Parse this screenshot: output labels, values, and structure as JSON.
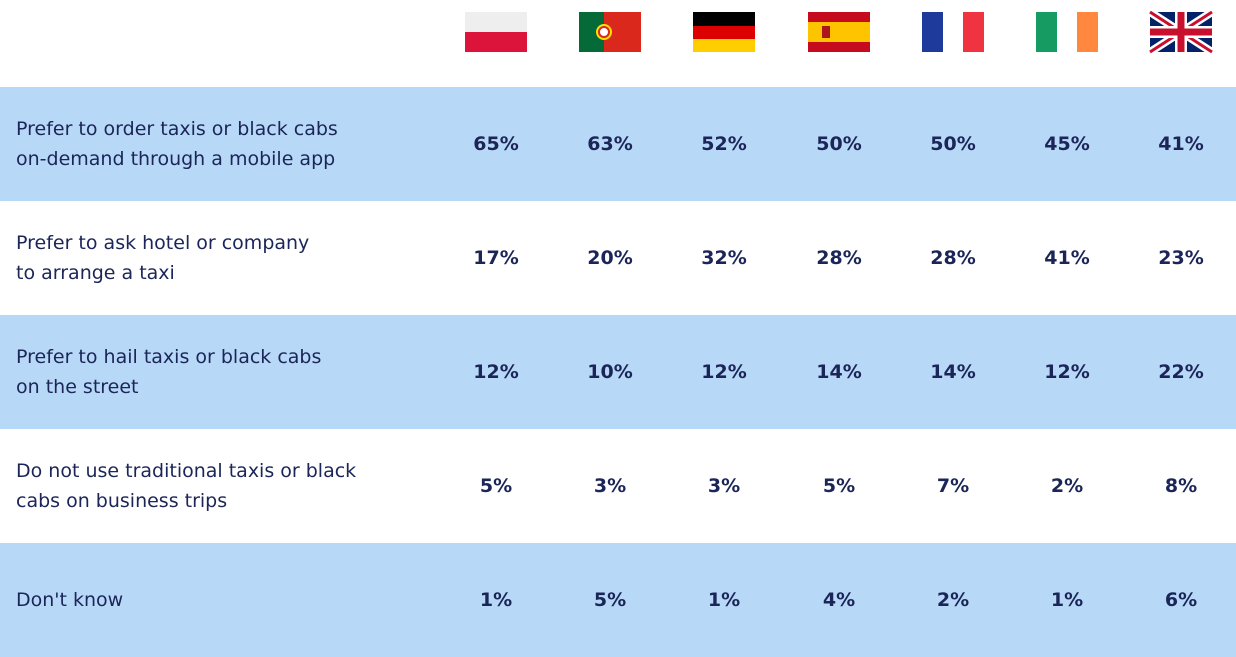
{
  "table": {
    "rows": [
      {
        "label": [
          "Prefer to order taxis or black cabs",
          "on-demand through a mobile app"
        ],
        "values": [
          "65%",
          "63%",
          "52%",
          "50%",
          "50%",
          "45%",
          "41%"
        ]
      },
      {
        "label": [
          "Prefer to ask hotel or company",
          "to arrange a taxi"
        ],
        "values": [
          "17%",
          "20%",
          "32%",
          "28%",
          "28%",
          "41%",
          "23%"
        ]
      },
      {
        "label": [
          "Prefer to hail taxis or black cabs",
          "on the street"
        ],
        "values": [
          "12%",
          "10%",
          "12%",
          "14%",
          "14%",
          "12%",
          "22%"
        ]
      },
      {
        "label": [
          "Do not use traditional taxis or black",
          "cabs on business trips"
        ],
        "values": [
          "5%",
          "3%",
          "3%",
          "5%",
          "7%",
          "2%",
          "8%"
        ]
      },
      {
        "label": [
          "Don't know"
        ],
        "values": [
          "1%",
          "5%",
          "1%",
          "4%",
          "2%",
          "1%",
          "6%"
        ]
      }
    ]
  }
}
